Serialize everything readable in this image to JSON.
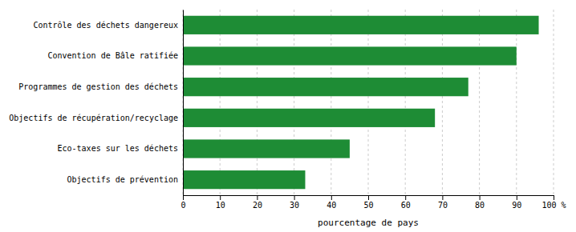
{
  "chart_data": {
    "type": "bar",
    "orientation": "horizontal",
    "categories": [
      "Objectifs de prévention",
      "Eco-taxes sur les déchets",
      "Objectifs de récupération/recyclage",
      "Programmes de gestion des déchets",
      "Convention de Bâle ratifiée",
      "Contrôle des déchets dangereux"
    ],
    "values": [
      33,
      45,
      68,
      77,
      90,
      96
    ],
    "color": "#1e8c35",
    "xlabel": "pourcentage de pays",
    "xlim": [
      0,
      100
    ],
    "xticks": [
      0,
      10,
      20,
      30,
      40,
      50,
      60,
      70,
      80,
      90,
      {
        "value": 100,
        "label": "100 %"
      }
    ],
    "grid": true
  }
}
